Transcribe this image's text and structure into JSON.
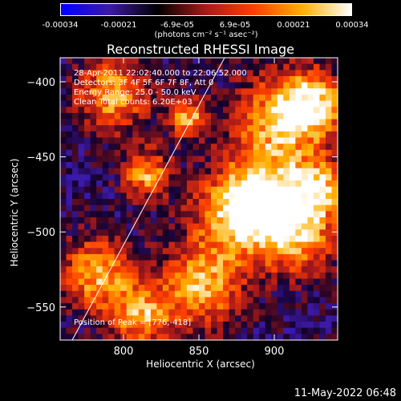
{
  "colorbar": {
    "ticks": [
      "-0.00034",
      "-0.00021",
      "-6.9e-05",
      "6.9e-05",
      "0.00021",
      "0.00034"
    ],
    "tick_values": [
      -0.00034,
      -0.00021,
      -6.9e-05,
      6.9e-05,
      0.00021,
      0.00034
    ],
    "units": "(photons cm⁻² s⁻¹ asec⁻²)",
    "range": [
      -0.00034,
      0.00034
    ],
    "colors": [
      "#0000ff",
      "#3d1aa8",
      "#000000",
      "#aa1a1a",
      "#ff4000",
      "#ffb000",
      "#ffffff"
    ]
  },
  "annotations": {
    "time_range": "28-Apr-2011 22:02:40.000 to 22:06:52.000",
    "detectors": "Detectors: 3F 4F 5F 6F 7F 8F, Att 0",
    "energy": "Energy Range: 25.0 - 50.0 keV",
    "clean": "Clean    Total counts: 6.20E+03",
    "peak": "Position of Peak = [776,-418]"
  },
  "footer_timestamp": "11-May-2022 06:48",
  "chart_data": {
    "type": "heatmap",
    "title": "Reconstructed RHESSI Image",
    "xlabel": "Heliocentric X (arcsec)",
    "ylabel": "Heliocentric Y (arcsec)",
    "xlim": [
      758,
      942
    ],
    "ylim": [
      -572,
      -384
    ],
    "xticks": [
      800,
      850,
      900
    ],
    "yticks": [
      -400,
      -450,
      -500,
      -550
    ],
    "xtick_labels": [
      "800",
      "850",
      "900"
    ],
    "ytick_labels": [
      "-400",
      "-450",
      "-500",
      "-550"
    ],
    "limb_line": [
      [
        766,
        -572
      ],
      [
        867,
        -384
      ]
    ],
    "grid": false
  }
}
